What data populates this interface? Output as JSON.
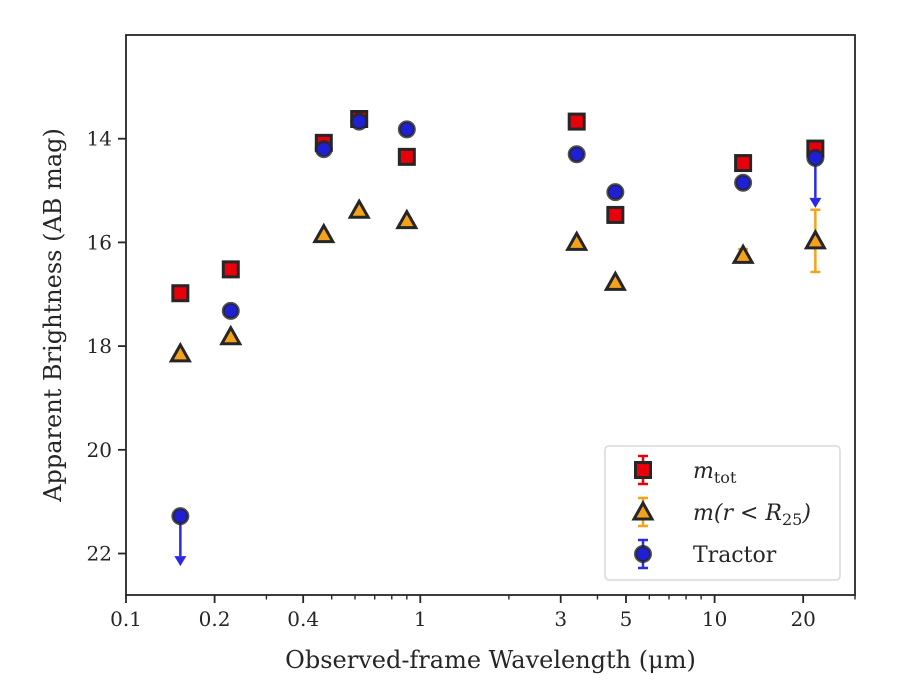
{
  "chart_data": {
    "type": "scatter",
    "title": "",
    "xlabel": "Observed-frame Wavelength (μm)",
    "ylabel": "Apparent Brightness (AB mag)",
    "xscale": "log",
    "xlim": [
      0.1,
      30
    ],
    "ylim": [
      22.8,
      12.0
    ],
    "y_inverted": true,
    "grid": false,
    "legend_position": "bottom-right",
    "xticks": [
      {
        "value": 0.1,
        "label": "0.1"
      },
      {
        "value": 0.2,
        "label": "0.2"
      },
      {
        "value": 0.4,
        "label": "0.4"
      },
      {
        "value": 1,
        "label": "1"
      },
      {
        "value": 3,
        "label": "3"
      },
      {
        "value": 5,
        "label": "5"
      },
      {
        "value": 10,
        "label": "10"
      },
      {
        "value": 20,
        "label": "20"
      }
    ],
    "yticks": [
      {
        "value": 14,
        "label": "14"
      },
      {
        "value": 16,
        "label": "16"
      },
      {
        "value": 18,
        "label": "18"
      },
      {
        "value": 20,
        "label": "20"
      },
      {
        "value": 22,
        "label": "22"
      }
    ],
    "series": [
      {
        "name": "m_tot",
        "legend_main": "m",
        "legend_sub": "tot",
        "marker": "square",
        "face_color": "#e8000b",
        "edge_color": "#262626",
        "error_color": "#e8000b",
        "points": [
          {
            "x": 0.153,
            "y": 16.98,
            "yerr": 0.05
          },
          {
            "x": 0.227,
            "y": 16.52,
            "yerr": 0.05
          },
          {
            "x": 0.47,
            "y": 14.08,
            "yerr": 0.05
          },
          {
            "x": 0.62,
            "y": 13.62,
            "yerr": 0.1
          },
          {
            "x": 0.9,
            "y": 14.35,
            "yerr": 0.05
          },
          {
            "x": 3.4,
            "y": 13.67,
            "yerr": 0.05
          },
          {
            "x": 4.6,
            "y": 15.47,
            "yerr": 0.05
          },
          {
            "x": 12.5,
            "y": 14.47,
            "yerr": 0.05
          },
          {
            "x": 22,
            "y": 14.19,
            "yerr": 0.05
          }
        ]
      },
      {
        "name": "m(r<R_25)",
        "legend_main": "m(r < R",
        "legend_sub": "25",
        "legend_tail": ")",
        "marker": "triangle",
        "face_color": "#f5a21b",
        "edge_color": "#262626",
        "error_color": "#f5a21b",
        "points": [
          {
            "x": 0.153,
            "y": 18.15,
            "yerr": 0.05
          },
          {
            "x": 0.227,
            "y": 17.82,
            "yerr": 0.05
          },
          {
            "x": 0.47,
            "y": 15.85,
            "yerr": 0.05
          },
          {
            "x": 0.62,
            "y": 15.38,
            "yerr": 0.05
          },
          {
            "x": 0.9,
            "y": 15.58,
            "yerr": 0.05
          },
          {
            "x": 3.4,
            "y": 16.0,
            "yerr": 0.05
          },
          {
            "x": 4.6,
            "y": 16.77,
            "yerr": 0.05
          },
          {
            "x": 12.5,
            "y": 16.25,
            "yerr": 0.12
          },
          {
            "x": 22,
            "y": 15.97,
            "yerr": 0.6
          }
        ]
      },
      {
        "name": "Tractor",
        "legend_main": "Tractor",
        "marker": "circle",
        "face_color": "#1f1fd6",
        "edge_color": "#262626",
        "error_color": "#2a2ae8",
        "points": [
          {
            "x": 0.153,
            "y": 21.28,
            "yerr": 0.03,
            "upper_limit": true
          },
          {
            "x": 0.227,
            "y": 17.32,
            "yerr": 0.05
          },
          {
            "x": 0.47,
            "y": 14.2,
            "yerr": 0.05
          },
          {
            "x": 0.62,
            "y": 13.67,
            "yerr": 0.05
          },
          {
            "x": 0.9,
            "y": 13.82,
            "yerr": 0.05
          },
          {
            "x": 3.4,
            "y": 14.3,
            "yerr": 0.05
          },
          {
            "x": 4.6,
            "y": 15.03,
            "yerr": 0.05
          },
          {
            "x": 12.5,
            "y": 14.85,
            "yerr": 0.05
          },
          {
            "x": 22,
            "y": 14.37,
            "yerr": 0.05,
            "upper_limit": true
          }
        ]
      }
    ]
  }
}
